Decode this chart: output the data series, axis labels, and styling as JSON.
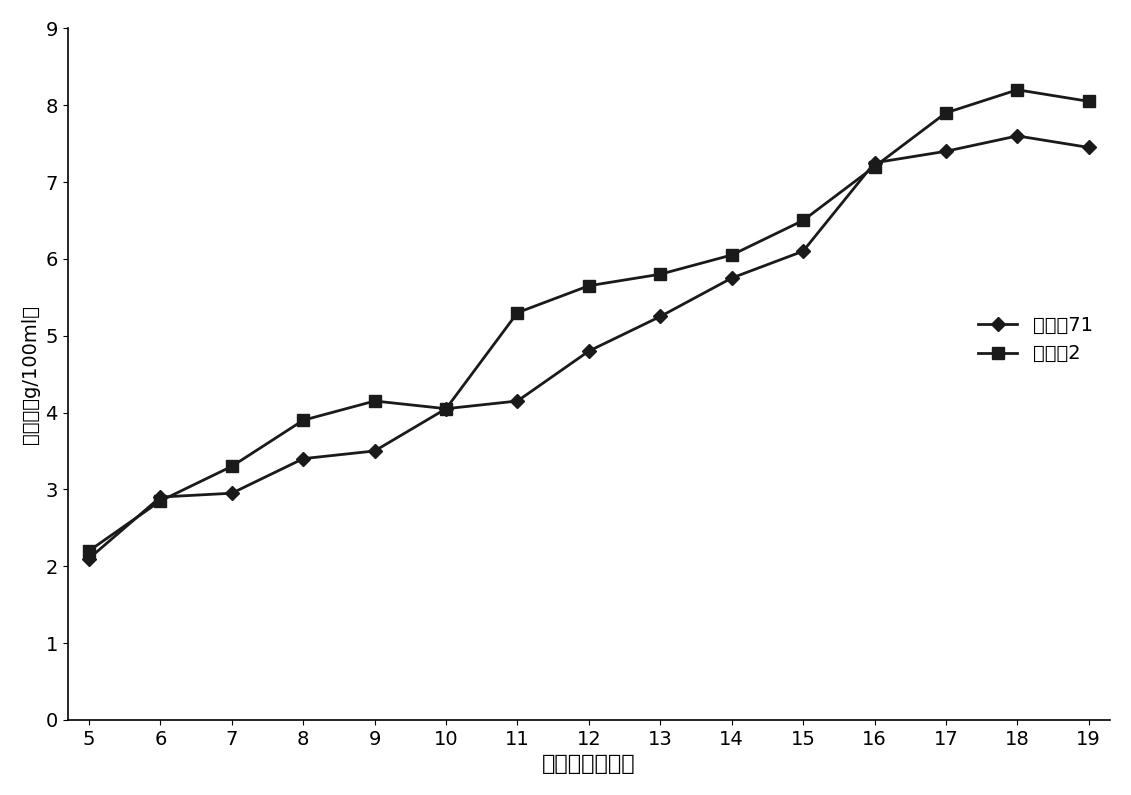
{
  "x": [
    5,
    6,
    7,
    8,
    9,
    10,
    11,
    12,
    13,
    14,
    15,
    16,
    17,
    18,
    19
  ],
  "series1_y": [
    2.1,
    2.9,
    2.95,
    3.4,
    3.5,
    4.05,
    4.15,
    4.8,
    5.25,
    5.75,
    6.1,
    7.25,
    7.4,
    7.6,
    7.45
  ],
  "series2_y": [
    2.2,
    2.85,
    3.3,
    3.9,
    4.15,
    4.05,
    5.3,
    5.65,
    5.8,
    6.05,
    6.5,
    7.2,
    7.9,
    8.2,
    8.05
  ],
  "series1_label": "对照刖71",
  "series2_label": "实施例2",
  "xlabel": "发酵时间（天）",
  "ylabel": "总酸度（g/100ml）",
  "ylim": [
    0,
    9
  ],
  "xlim": [
    5,
    19
  ],
  "yticks": [
    0,
    1,
    2,
    3,
    4,
    5,
    6,
    7,
    8,
    9
  ],
  "xticks": [
    5,
    6,
    7,
    8,
    9,
    10,
    11,
    12,
    13,
    14,
    15,
    16,
    17,
    18,
    19
  ],
  "line_color": "#1a1a1a",
  "marker1": "D",
  "marker2": "s",
  "markersize1": 7,
  "markersize2": 8,
  "linewidth": 2.0,
  "xlabel_fontsize": 16,
  "ylabel_fontsize": 14,
  "tick_fontsize": 14,
  "legend_fontsize": 14
}
